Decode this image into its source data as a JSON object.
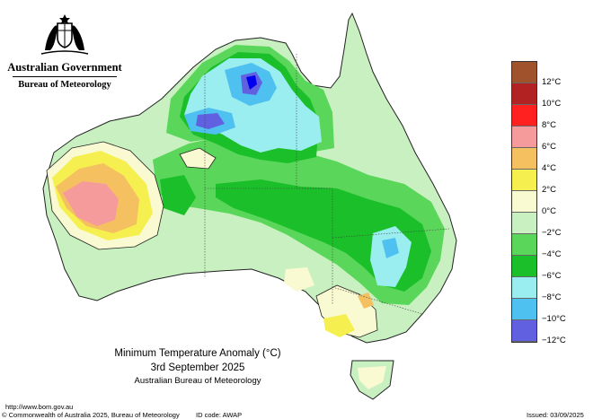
{
  "header": {
    "government": "Australian Government",
    "bureau": "Bureau of Meteorology"
  },
  "legend": {
    "items": [
      {
        "label": "12°C",
        "color": "#a0522d"
      },
      {
        "label": "10°C",
        "color": "#b22222"
      },
      {
        "label": "8°C",
        "color": "#ff2020"
      },
      {
        "label": "6°C",
        "color": "#f59b9b"
      },
      {
        "label": "4°C",
        "color": "#f5c060"
      },
      {
        "label": "2°C",
        "color": "#f5f050"
      },
      {
        "label": "0°C",
        "color": "#fafad2"
      },
      {
        "label": "−2°C",
        "color": "#c8f0c0"
      },
      {
        "label": "−4°C",
        "color": "#5ad75a"
      },
      {
        "label": "−6°C",
        "color": "#1bbf2a"
      },
      {
        "label": "−8°C",
        "color": "#9beef0"
      },
      {
        "label": "−10°C",
        "color": "#4fc1f0"
      },
      {
        "label": "−12°C",
        "color": "#6060e0"
      }
    ],
    "bottom_color": "#0000ee"
  },
  "title": {
    "line1": "Minimum Temperature Anomaly (°C)",
    "line2": "3rd September 2025",
    "line3": "Australian Bureau of Meteorology"
  },
  "footer": {
    "url": "http://www.bom.gov.au",
    "copyright": "© Commonwealth of Australia 2025, Bureau of Meteorology",
    "id_code": "ID code: AWAP",
    "issued": "Issued: 03/09/2025"
  }
}
